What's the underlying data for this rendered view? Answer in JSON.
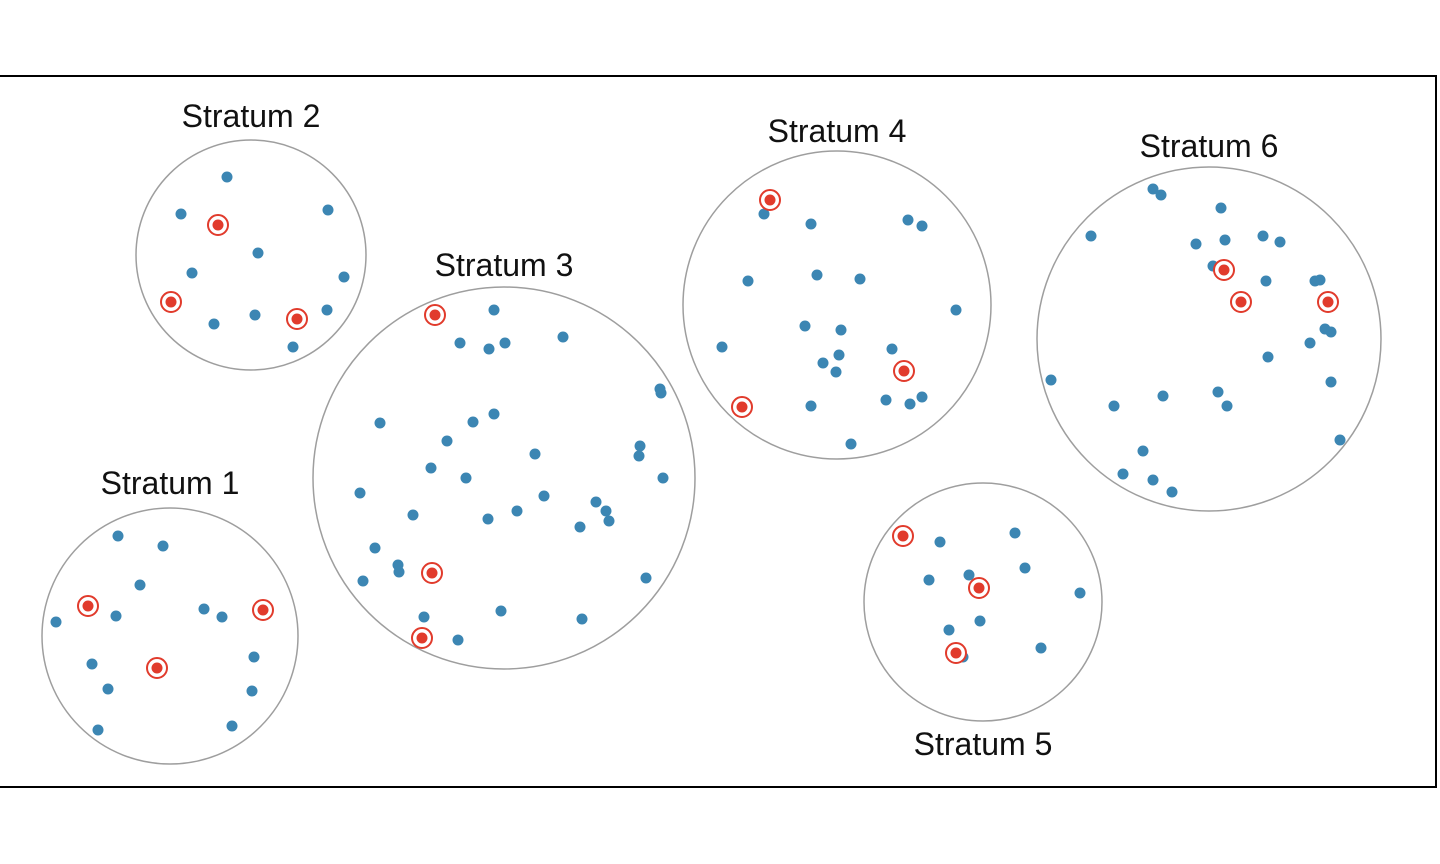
{
  "colors": {
    "background": "#ffffff",
    "frame": "#000000",
    "stratum_outline": "#9e9e9e",
    "point": "#3c86b3",
    "sampled_point": "#e13b2c",
    "sampled_ring": "#e13b2c"
  },
  "strata": [
    {
      "label": "Stratum 1",
      "sampled_count": 3,
      "unsampled_count": 15
    },
    {
      "label": "Stratum 2",
      "sampled_count": 3,
      "unsampled_count": 12
    },
    {
      "label": "Stratum 3",
      "sampled_count": 3,
      "unsampled_count": 44
    },
    {
      "label": "Stratum 4",
      "sampled_count": 3,
      "unsampled_count": 23
    },
    {
      "label": "Stratum 5",
      "sampled_count": 3,
      "unsampled_count": 12
    },
    {
      "label": "Stratum 6",
      "sampled_count": 3,
      "unsampled_count": 30
    }
  ]
}
